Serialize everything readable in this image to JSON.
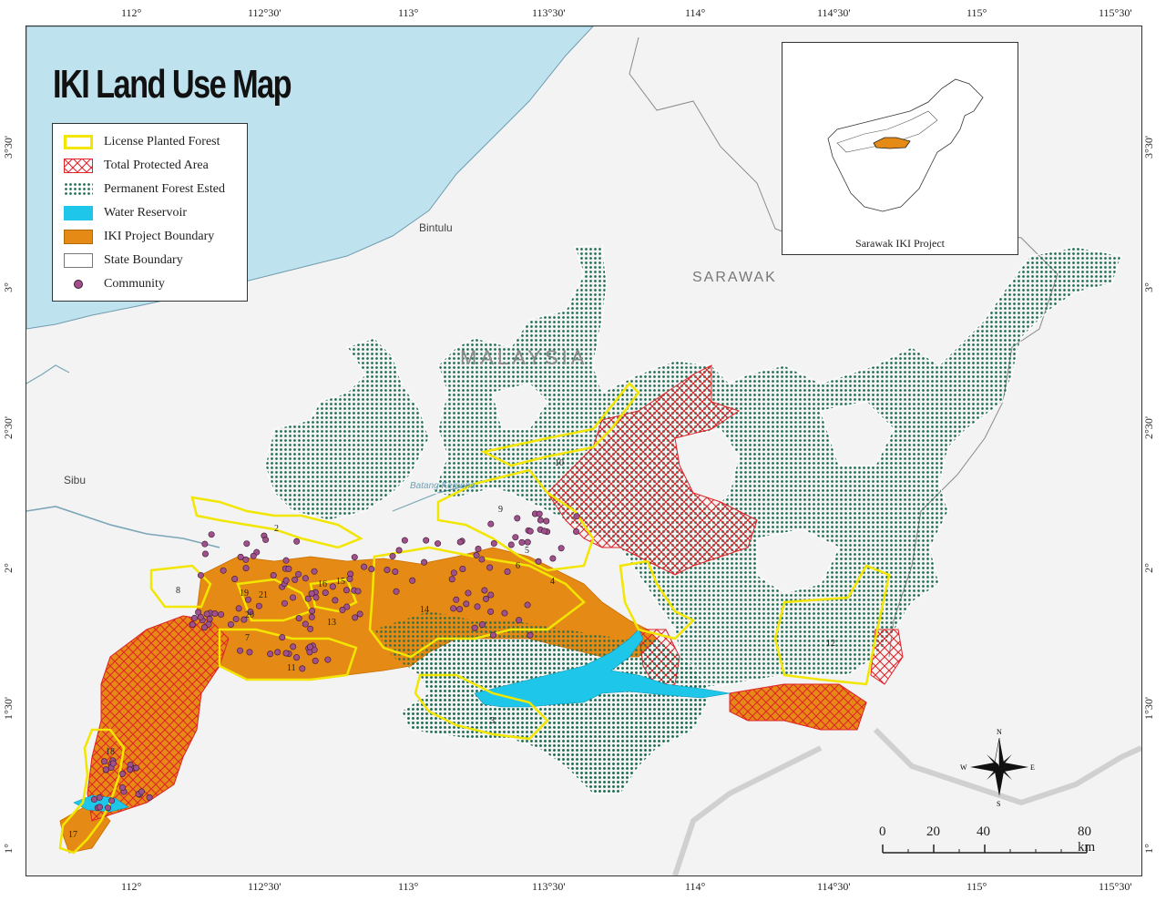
{
  "map": {
    "title": "IKI Land Use Map",
    "colors": {
      "sea": "#bfe3ee",
      "land": "#f3f3f3",
      "license_outline": "#f2e600",
      "protected_hatch": "#e0242a",
      "forest_dots": "#1a6b4f",
      "water": "#1ec7ea",
      "iki_fill": "#e58a14",
      "community": "#a0508a"
    },
    "coords_top": [
      "112°",
      "112°30'",
      "113°",
      "113°30'",
      "114°",
      "114°30'",
      "115°",
      "115°30'"
    ],
    "coords_bottom": [
      "112°",
      "112°30'",
      "113°",
      "113°30'",
      "114°",
      "114°30'",
      "115°",
      "115°30'"
    ],
    "coords_left": [
      "3°30'",
      "3°",
      "2°30'",
      "2°",
      "1°30'",
      "1°"
    ],
    "coords_right": [
      "3°30'",
      "3°",
      "2°30'",
      "2°",
      "1°30'",
      "1°"
    ],
    "places": {
      "bintulu": "Bintulu",
      "sibu": "Sibu",
      "sarawak": "SARAWAK",
      "malaysia": "MALAYSIA",
      "batang_kemena": "Batang Kemena"
    },
    "area_numbers": [
      "2",
      "3",
      "4",
      "5",
      "6",
      "7",
      "8",
      "9",
      "10",
      "11",
      "12",
      "13",
      "14",
      "15",
      "16",
      "17",
      "18",
      "19",
      "20",
      "21"
    ]
  },
  "legend": {
    "items": [
      {
        "label": "License Planted Forest",
        "icon": "outline-yellow"
      },
      {
        "label": "Total Protected Area",
        "icon": "hatch-red"
      },
      {
        "label": "Permanent Forest Ested",
        "icon": "dots-green"
      },
      {
        "label": "Water Reservoir",
        "icon": "fill-blue"
      },
      {
        "label": "IKI Project Boundary",
        "icon": "fill-orange"
      },
      {
        "label": "State Boundary",
        "icon": "outline-grey"
      },
      {
        "label": "Community",
        "icon": "dot-purple"
      }
    ]
  },
  "inset": {
    "caption": "Sarawak IKI Project"
  },
  "scalebar": {
    "labels": [
      "0",
      "20",
      "40",
      "80 km"
    ]
  },
  "compass": {
    "n": "N",
    "s": "S",
    "e": "E",
    "w": "W"
  }
}
